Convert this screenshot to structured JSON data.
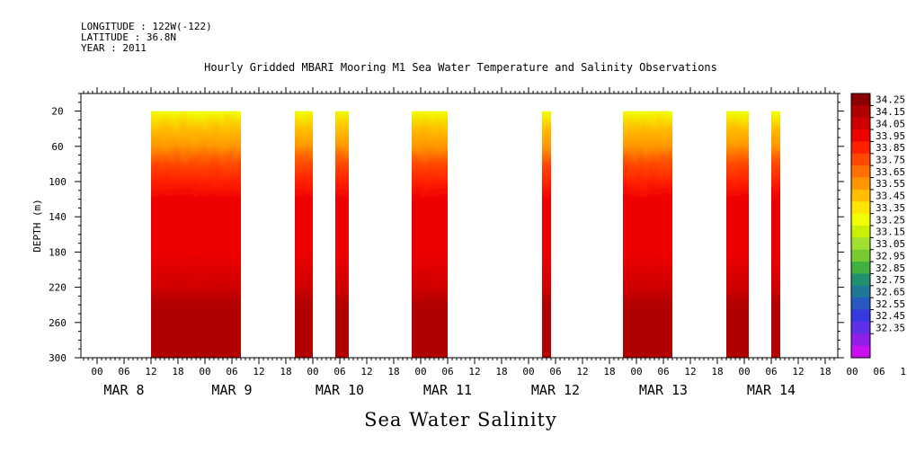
{
  "header": {
    "longitude": "LONGITUDE : 122W(-122)",
    "latitude": "LATITUDE : 36.8N",
    "year": "YEAR : 2011"
  },
  "title": "Hourly Gridded MBARI Mooring M1 Sea Water Temperature and Salinity Observations",
  "footer": "Sea Water Salinity",
  "chart_data": {
    "type": "heatmap",
    "title": "Hourly Gridded MBARI Mooring M1 Sea Water Temperature and Salinity Observations",
    "xlabel": "",
    "ylabel": "DEPTH (m)",
    "colorbar_label": "",
    "y_axis": {
      "range": [
        300,
        0
      ],
      "ticks": [
        20,
        60,
        100,
        140,
        180,
        220,
        260,
        300
      ],
      "inverted": true
    },
    "x_axis": {
      "start": "MAR 7 18:00",
      "end": "MAR 14 18:00",
      "tick_labels": [
        "00",
        "06",
        "12",
        "18",
        "00",
        "06",
        "12",
        "18",
        "00",
        "06",
        "12",
        "18",
        "00",
        "06",
        "12",
        "18",
        "00",
        "06",
        "12",
        "18",
        "00",
        "06",
        "12",
        "18",
        "00",
        "06",
        "12",
        "18",
        "00",
        "06",
        "12",
        "18"
      ],
      "day_labels": [
        {
          "label": "MAR  8",
          "date": "MAR 8"
        },
        {
          "label": "MAR  9",
          "date": "MAR 9"
        },
        {
          "label": "MAR 10",
          "date": "MAR 10"
        },
        {
          "label": "MAR 11",
          "date": "MAR 11"
        },
        {
          "label": "MAR 12",
          "date": "MAR 12"
        },
        {
          "label": "MAR 13",
          "date": "MAR 13"
        },
        {
          "label": "MAR 14",
          "date": "MAR 14"
        }
      ]
    },
    "colorbar_levels": [
      "34.25",
      "34.15",
      "34.05",
      "33.95",
      "33.85",
      "33.75",
      "33.65",
      "33.55",
      "33.45",
      "33.35",
      "33.25",
      "33.15",
      "33.05",
      "32.95",
      "32.85",
      "32.75",
      "32.65",
      "32.55",
      "32.45",
      "32.35"
    ],
    "colorbar_colors": [
      "#8b0000",
      "#b00000",
      "#d00000",
      "#ee0000",
      "#ff2000",
      "#ff4800",
      "#ff7000",
      "#ff9600",
      "#ffbe00",
      "#ffe400",
      "#f0ff00",
      "#c8f000",
      "#a0e030",
      "#78c830",
      "#40b040",
      "#209070",
      "#207898",
      "#2858c0",
      "#3838e0",
      "#6030e8",
      "#9020e8",
      "#c810f0"
    ],
    "data_segments": [
      {
        "start": "MAR 8 12:00",
        "end": "MAR 9 08:00"
      },
      {
        "start": "MAR 9 20:00",
        "end": "MAR 10 00:00"
      },
      {
        "start": "MAR 10 05:00",
        "end": "MAR 10 08:00"
      },
      {
        "start": "MAR 10 22:00",
        "end": "MAR 11 06:00"
      },
      {
        "start": "MAR 12 03:00",
        "end": "MAR 12 05:00"
      },
      {
        "start": "MAR 12 21:00",
        "end": "MAR 13 08:00"
      },
      {
        "start": "MAR 13 20:00",
        "end": "MAR 14 01:00"
      },
      {
        "start": "MAR 14 06:00",
        "end": "MAR 14 08:00"
      }
    ],
    "salinity_profile": {
      "depth": [
        20,
        40,
        60,
        80,
        100,
        120,
        140,
        180,
        220,
        240,
        260,
        300
      ],
      "salinity": [
        33.3,
        33.45,
        33.6,
        33.8,
        33.9,
        33.95,
        34.0,
        34.03,
        34.08,
        34.15,
        34.2,
        34.17
      ]
    }
  }
}
